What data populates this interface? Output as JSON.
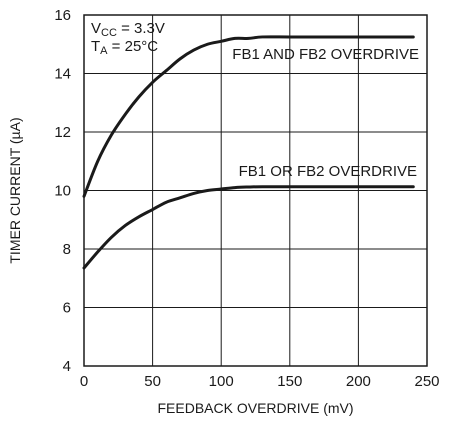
{
  "chart_data": {
    "type": "line",
    "xlabel": "FEEDBACK OVERDRIVE (mV)",
    "ylabel": "TIMER CURRENT (µA)",
    "xlim": [
      0,
      250
    ],
    "ylim": [
      4,
      16
    ],
    "xticks": [
      0,
      50,
      100,
      150,
      200,
      250
    ],
    "yticks": [
      4,
      6,
      8,
      10,
      12,
      14,
      16
    ],
    "grid": true,
    "conditions": {
      "vcc_main": "V",
      "vcc_sub": "CC",
      "vcc_value": " = 3.3V",
      "ta_main": "T",
      "ta_sub": "A",
      "ta_value": " = 25°C"
    },
    "series": [
      {
        "name": "FB1 AND FB2 OVERDRIVE",
        "x": [
          0,
          10,
          20,
          30,
          40,
          50,
          60,
          70,
          80,
          90,
          100,
          110,
          120,
          130,
          150,
          175,
          200,
          240
        ],
        "y": [
          9.8,
          11.0,
          11.9,
          12.6,
          13.2,
          13.7,
          14.1,
          14.5,
          14.8,
          15.0,
          15.1,
          15.2,
          15.2,
          15.25,
          15.25,
          15.25,
          15.25,
          15.25
        ]
      },
      {
        "name": "FB1 OR FB2 OVERDRIVE",
        "x": [
          0,
          10,
          20,
          30,
          40,
          50,
          60,
          70,
          80,
          90,
          100,
          110,
          120,
          130,
          150,
          175,
          200,
          240
        ],
        "y": [
          7.35,
          7.9,
          8.4,
          8.8,
          9.1,
          9.35,
          9.6,
          9.75,
          9.9,
          10.0,
          10.05,
          10.1,
          10.12,
          10.13,
          10.13,
          10.13,
          10.13,
          10.13
        ]
      }
    ]
  }
}
